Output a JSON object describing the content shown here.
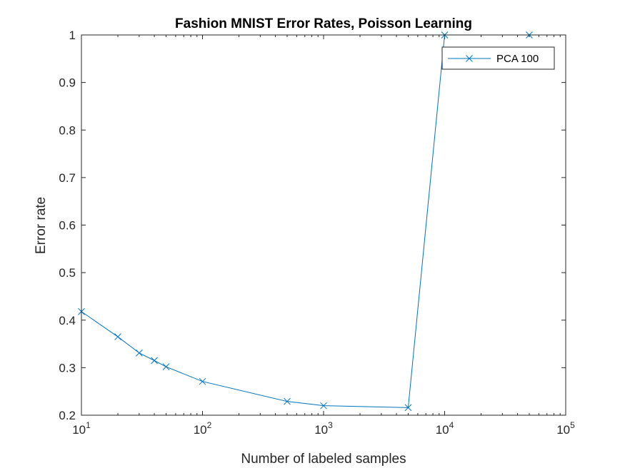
{
  "chart_data": {
    "type": "line",
    "title": "Fashion MNIST Error Rates, Poisson Learning",
    "xlabel": "Number of labeled samples",
    "ylabel": "Error rate",
    "x_scale": "log",
    "xlim": [
      10,
      100000
    ],
    "ylim": [
      0.2,
      1.0
    ],
    "x_ticks": [
      {
        "value": 10,
        "base": "10",
        "exp": "1"
      },
      {
        "value": 100,
        "base": "10",
        "exp": "2"
      },
      {
        "value": 1000,
        "base": "10",
        "exp": "3"
      },
      {
        "value": 10000,
        "base": "10",
        "exp": "4"
      },
      {
        "value": 100000,
        "base": "10",
        "exp": "5"
      }
    ],
    "y_ticks": [
      "0.2",
      "0.3",
      "0.4",
      "0.5",
      "0.6",
      "0.7",
      "0.8",
      "0.9",
      "1"
    ],
    "grid": false,
    "box": true,
    "legend_position": "top-right",
    "series": [
      {
        "name": "PCA 100",
        "color": "#0072BD",
        "marker": "x",
        "x": [
          10,
          20,
          30,
          40,
          50,
          100,
          500,
          1000,
          5000,
          10000,
          50000
        ],
        "y": [
          0.418,
          0.365,
          0.331,
          0.315,
          0.302,
          0.271,
          0.229,
          0.22,
          0.216,
          1.0,
          1.0
        ]
      }
    ]
  }
}
